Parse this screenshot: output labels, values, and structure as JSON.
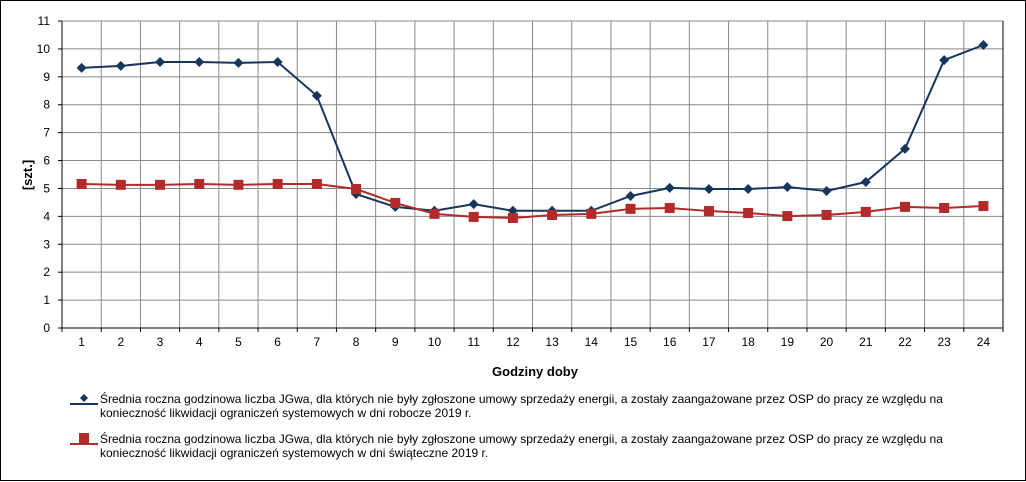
{
  "chart_data": {
    "type": "line",
    "title": "",
    "xlabel": "Godziny doby",
    "ylabel": "[szt.]",
    "ylim": [
      0,
      11
    ],
    "yticks": [
      "0",
      "1",
      "2",
      "3",
      "4",
      "5",
      "6",
      "7",
      "8",
      "9",
      "10",
      "11"
    ],
    "categories": [
      "1",
      "2",
      "3",
      "4",
      "5",
      "6",
      "7",
      "8",
      "9",
      "10",
      "11",
      "12",
      "13",
      "14",
      "15",
      "16",
      "17",
      "18",
      "19",
      "20",
      "21",
      "22",
      "23",
      "24"
    ],
    "grid": true,
    "legend_position": "bottom",
    "series": [
      {
        "name": "Średnia roczna godzinowa liczba JGwa, dla których nie były zgłoszone umowy sprzedaży energii, a zostały zaangażowane przez OSP do pracy ze względu na konieczność likwidacji ograniczeń systemowych w dni robocze 2019 r.",
        "color": "#17365D",
        "marker": "diamond",
        "values": [
          9.32,
          9.39,
          9.53,
          9.53,
          9.5,
          9.53,
          8.32,
          4.8,
          4.34,
          4.2,
          4.44,
          4.2,
          4.2,
          4.2,
          4.73,
          5.02,
          4.98,
          4.98,
          5.05,
          4.91,
          5.23,
          6.42,
          9.6,
          10.14
        ]
      },
      {
        "name": "Średnia roczna godzinowa liczba JGwa, dla których nie były zgłoszone umowy sprzedaży energii, a zostały zaangażowane przez OSP do pracy ze względu na konieczność likwidacji ograniczeń systemowych w dni świąteczne 2019 r.",
        "color": "#B22A2A",
        "marker": "square",
        "values": [
          5.16,
          5.13,
          5.13,
          5.16,
          5.13,
          5.16,
          5.16,
          4.98,
          4.48,
          4.09,
          3.98,
          3.94,
          4.05,
          4.09,
          4.27,
          4.3,
          4.19,
          4.12,
          4.01,
          4.05,
          4.16,
          4.34,
          4.3,
          4.37
        ]
      }
    ]
  }
}
